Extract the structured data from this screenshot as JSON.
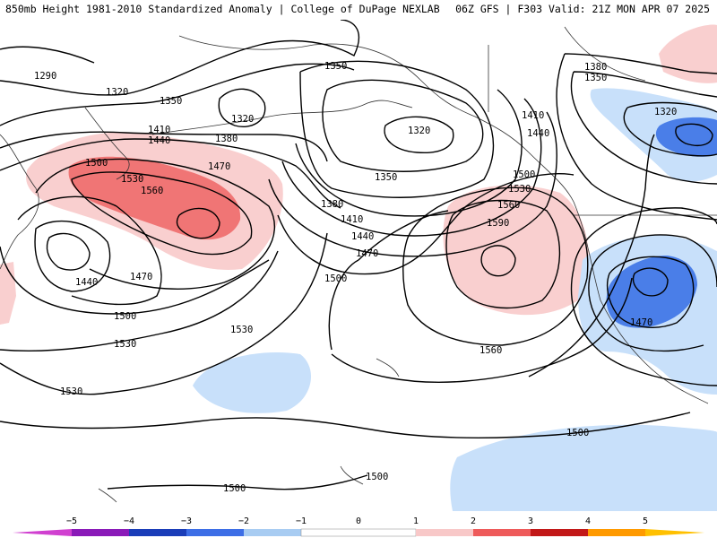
{
  "header": {
    "left": "850mb Height 1981-2010 Standardized Anomaly | College of DuPage NEXLAB",
    "right": "06Z GFS | F303 Valid: 21Z MON APR 07 2025"
  },
  "contour_labels": [
    "1290",
    "1320",
    "1350",
    "1350",
    "1320",
    "1380",
    "1320",
    "1410",
    "1440",
    "1500",
    "1470",
    "1530",
    "1560",
    "1380",
    "1350",
    "1410",
    "1440",
    "1470",
    "1500",
    "1500",
    "1530",
    "1560",
    "1590",
    "1410",
    "1440",
    "1470",
    "1380",
    "1350",
    "1320",
    "1440",
    "1470",
    "1500",
    "1530",
    "1530",
    "1530",
    "1560",
    "1500",
    "1500",
    "1500"
  ],
  "colorbar": {
    "ticks": [
      "−5",
      "−4",
      "−3",
      "−2",
      "−1",
      "0",
      "1",
      "2",
      "3",
      "4",
      "5"
    ],
    "colors": [
      "#d040d0",
      "#8a1ab8",
      "#1a3db8",
      "#3d6ee6",
      "#a8ccf2",
      "#ffffff",
      "#ffffff",
      "#f8c8c8",
      "#ee5a5a",
      "#c21818",
      "#ff9a00"
    ]
  },
  "colors": {
    "weak_positive": "#f9cfcf",
    "strong_positive": "#f07575",
    "weak_negative": "#c8e0fa",
    "strong_negative": "#4a7ee8",
    "contour": "#000000",
    "coast": "#333333"
  }
}
